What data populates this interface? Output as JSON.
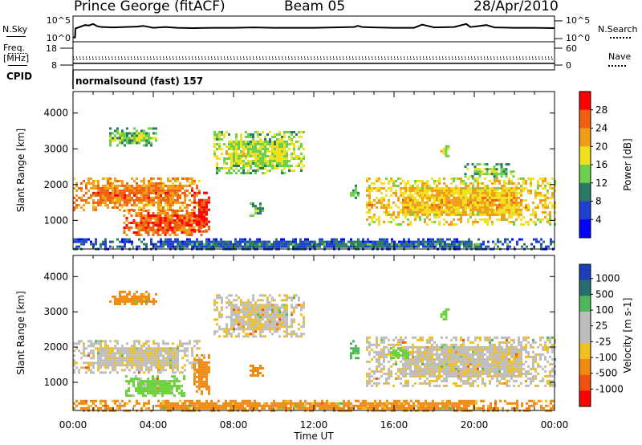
{
  "header": {
    "station": "Prince George (fitACF)",
    "beam": "Beam 05",
    "date": "28/Apr/2010"
  },
  "side_labels": {
    "nsky": "N.Sky",
    "nsearch": "N.Search",
    "freq_line1": "Freq.",
    "freq_line2": "[MHz]",
    "nave": "Nave",
    "cpid": "CPID"
  },
  "cpid_text": "normalsound (fast) 157",
  "colors": {
    "power_scale": [
      "#0000ff",
      "#1f3fd0",
      "#2b7a66",
      "#6cd04c",
      "#f0e020",
      "#f09d18",
      "#f06010",
      "#ff0000"
    ],
    "velocity_scale": [
      "#1b3fb8",
      "#256e6b",
      "#4db85b",
      "#6bd23b",
      "#bebebe",
      "#bebebe",
      "#f0c020",
      "#f08a10",
      "#f05010",
      "#ff0000"
    ]
  },
  "chart_data": [
    {
      "type": "line",
      "panel": "noise",
      "left_label": "N.Sky",
      "right_label": "N.Search",
      "yticks_left": [
        "10^5",
        "10^0"
      ],
      "yticks_right": [
        "10^5",
        "10^0"
      ],
      "ylim": [
        0,
        5
      ],
      "x_range": [
        0,
        24
      ],
      "series": [
        {
          "name": "N.Sky",
          "style": "solid",
          "x": [
            0,
            0.1,
            0.12,
            0.6,
            0.8,
            1.0,
            1.2,
            1.4,
            2.0,
            3.2,
            3.5,
            4.0,
            4.6,
            5.2,
            6.0,
            7.0,
            8.0,
            9.0,
            10.0,
            11.0,
            12.0,
            13.0,
            14.0,
            14.2,
            14.4,
            15.0,
            16.0,
            17.0,
            17.4,
            18.0,
            19.0,
            19.6,
            19.8,
            20.0,
            20.6,
            21.0,
            22.0,
            23.0,
            24.0
          ],
          "values": [
            0.3,
            0.3,
            2.6,
            3.5,
            3.4,
            3.8,
            3.2,
            3.0,
            2.9,
            3.1,
            3.3,
            2.8,
            3.0,
            2.8,
            2.7,
            2.8,
            2.8,
            2.9,
            2.8,
            2.8,
            2.8,
            2.9,
            3.0,
            3.3,
            3.0,
            2.9,
            2.8,
            2.8,
            3.6,
            2.9,
            3.0,
            3.8,
            3.0,
            3.1,
            3.5,
            2.9,
            2.8,
            2.8,
            2.7
          ]
        },
        {
          "name": "N.Search",
          "style": "dotted",
          "x": [],
          "values": []
        }
      ]
    },
    {
      "type": "line",
      "panel": "frequency",
      "left_label": "Freq. [MHz]",
      "right_label": "Nave",
      "yticks_left": [
        "18",
        "8"
      ],
      "yticks_right": [
        "60",
        "0"
      ],
      "ylim_left": [
        8,
        18
      ],
      "ylim_right": [
        0,
        60
      ],
      "x_range": [
        0,
        24
      ],
      "series": [
        {
          "name": "Freq.",
          "style": "dotted",
          "x": [
            0,
            24
          ],
          "values": [
            11.2,
            11.2
          ]
        },
        {
          "name": "Nave",
          "style": "dotted",
          "x": [
            0,
            24
          ],
          "values": [
            26,
            26
          ]
        },
        {
          "name": "",
          "style": "solid",
          "x": [
            0,
            24
          ],
          "values": [
            8.9,
            8.9
          ]
        }
      ]
    },
    {
      "type": "heatmap",
      "panel": "power",
      "ylabel": "Slant Range [km]",
      "colorbar_label": "Power [dB]",
      "colorbar_ticks": [
        "28",
        "24",
        "20",
        "16",
        "12",
        "8",
        "4"
      ],
      "yticks": [
        "4000",
        "3000",
        "2000",
        "1000"
      ],
      "ylim": [
        200,
        4600
      ],
      "x_range": [
        0,
        24
      ],
      "regions": [
        {
          "t": [
            0,
            6.3
          ],
          "r": [
            1300,
            2200
          ],
          "power": 22
        },
        {
          "t": [
            2.5,
            6.7
          ],
          "r": [
            600,
            1300
          ],
          "power": 24
        },
        {
          "t": [
            6.0,
            6.8
          ],
          "r": [
            700,
            1800
          ],
          "power": 27
        },
        {
          "t": [
            7.0,
            11.5
          ],
          "r": [
            2300,
            3500
          ],
          "power": 14
        },
        {
          "t": [
            1.8,
            4.2
          ],
          "r": [
            3100,
            3600
          ],
          "power": 12
        },
        {
          "t": [
            8.8,
            9.5
          ],
          "r": [
            1100,
            1500
          ],
          "power": 10
        },
        {
          "t": [
            13.8,
            14.2
          ],
          "r": [
            1600,
            2000
          ],
          "power": 10
        },
        {
          "t": [
            14.6,
            24
          ],
          "r": [
            900,
            2200
          ],
          "power": 18
        },
        {
          "t": [
            18.3,
            18.7
          ],
          "r": [
            2800,
            3100
          ],
          "power": 16
        },
        {
          "t": [
            19.5,
            22
          ],
          "r": [
            2200,
            2600
          ],
          "power": 12
        },
        {
          "t": [
            0,
            24
          ],
          "r": [
            200,
            500
          ],
          "power": 6
        }
      ]
    },
    {
      "type": "heatmap",
      "panel": "velocity",
      "ylabel": "Slant Range [km]",
      "colorbar_label": "Velocity [m s-1]",
      "colorbar_ticks": [
        "1000",
        "500",
        "100",
        "25",
        "-25",
        "-100",
        "-500",
        "-1000"
      ],
      "yticks": [
        "4000",
        "3000",
        "2000",
        "1000"
      ],
      "ylim": [
        200,
        4600
      ],
      "x_range": [
        0,
        24
      ],
      "xticks": [
        "00:00",
        "04:00",
        "08:00",
        "12:00",
        "16:00",
        "20:00",
        "00:00"
      ],
      "xlabel": "Time UT",
      "regions": [
        {
          "t": [
            0,
            6.3
          ],
          "r": [
            1300,
            2200
          ],
          "velocity": 0
        },
        {
          "t": [
            2.6,
            5.5
          ],
          "r": [
            600,
            1200
          ],
          "velocity": 150
        },
        {
          "t": [
            6.0,
            6.8
          ],
          "r": [
            700,
            1800
          ],
          "velocity": -400
        },
        {
          "t": [
            7.0,
            11.5
          ],
          "r": [
            2300,
            3500
          ],
          "velocity": 0
        },
        {
          "t": [
            1.8,
            4.2
          ],
          "r": [
            3200,
            3600
          ],
          "velocity": -150
        },
        {
          "t": [
            8.8,
            9.5
          ],
          "r": [
            1100,
            1500
          ],
          "velocity": -200
        },
        {
          "t": [
            13.8,
            14.2
          ],
          "r": [
            1700,
            2200
          ],
          "velocity": 600
        },
        {
          "t": [
            14.6,
            24
          ],
          "r": [
            900,
            2300
          ],
          "velocity": 0
        },
        {
          "t": [
            15.8,
            16.7
          ],
          "r": [
            1700,
            2000
          ],
          "velocity": 200
        },
        {
          "t": [
            18.3,
            18.7
          ],
          "r": [
            2800,
            3100
          ],
          "velocity": 150
        },
        {
          "t": [
            0,
            24
          ],
          "r": [
            200,
            500
          ],
          "velocity": -150
        }
      ]
    }
  ]
}
